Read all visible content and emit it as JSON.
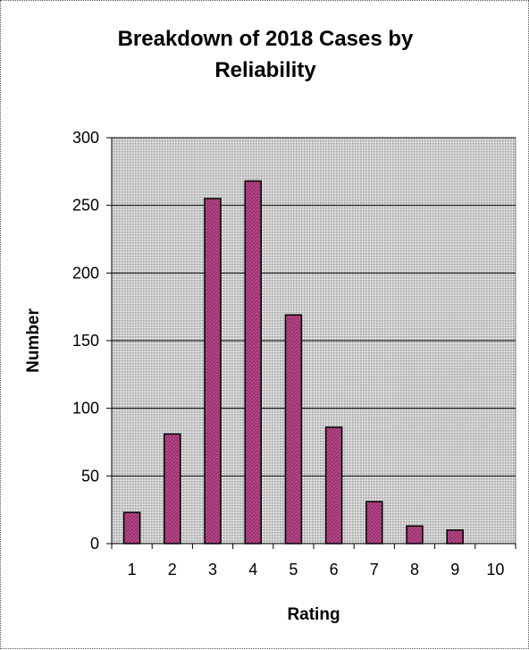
{
  "chart_data": {
    "type": "bar",
    "title_lines": [
      "Breakdown of 2018 Cases by",
      "Reliability"
    ],
    "xlabel": "Rating",
    "ylabel": "Number",
    "categories": [
      "1",
      "2",
      "3",
      "4",
      "5",
      "6",
      "7",
      "8",
      "9",
      "10"
    ],
    "values": [
      23,
      81,
      255,
      268,
      169,
      86,
      31,
      13,
      10,
      0
    ],
    "ylim": [
      0,
      300
    ],
    "yticks": [
      "0",
      "50",
      "100",
      "150",
      "200",
      "250",
      "300"
    ],
    "grid": true,
    "legend": "none",
    "colors": {
      "bar_fill": "#99336f",
      "bar_stroke": "#000000",
      "plot_bg": "#c0c0c0",
      "gridline": "#000000"
    }
  }
}
